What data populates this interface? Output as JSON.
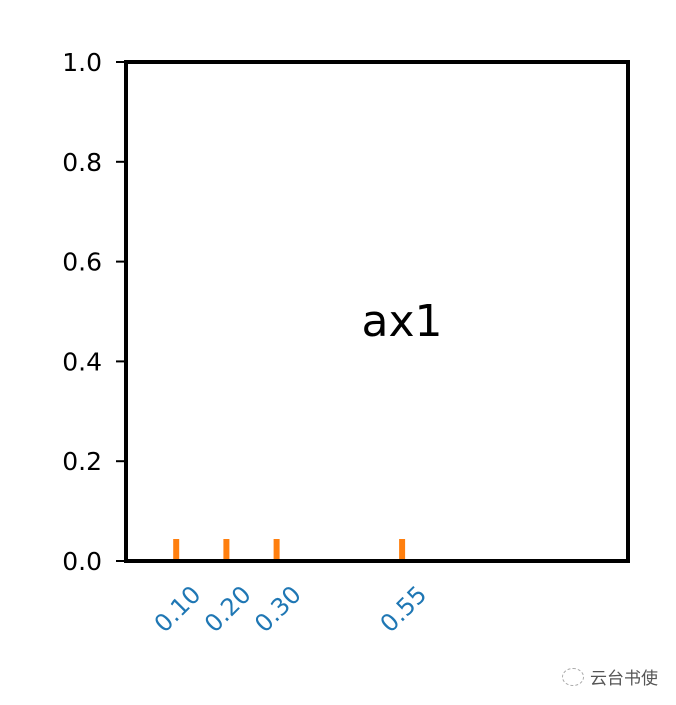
{
  "chart_data": {
    "type": "scatter",
    "title": "",
    "annotation": "ax1",
    "xlim": [
      0,
      1
    ],
    "ylim": [
      0,
      1
    ],
    "yticks": [
      0.0,
      0.2,
      0.4,
      0.6,
      0.8,
      1.0
    ],
    "ytick_labels": [
      "0.0",
      "0.2",
      "0.4",
      "0.6",
      "0.8",
      "1.0"
    ],
    "xticks": [
      0.1,
      0.2,
      0.3,
      0.55
    ],
    "xtick_labels": [
      "0.10",
      "0.20",
      "0.30",
      "0.55"
    ],
    "xtick_label_rotation": 45,
    "colors": {
      "xtick_marks": "#ff7f0e",
      "xtick_labels": "#1f77b4",
      "axes": "#000000"
    },
    "grid": false
  },
  "watermark": {
    "text": "云台书使",
    "icon": "wechat-icon"
  }
}
